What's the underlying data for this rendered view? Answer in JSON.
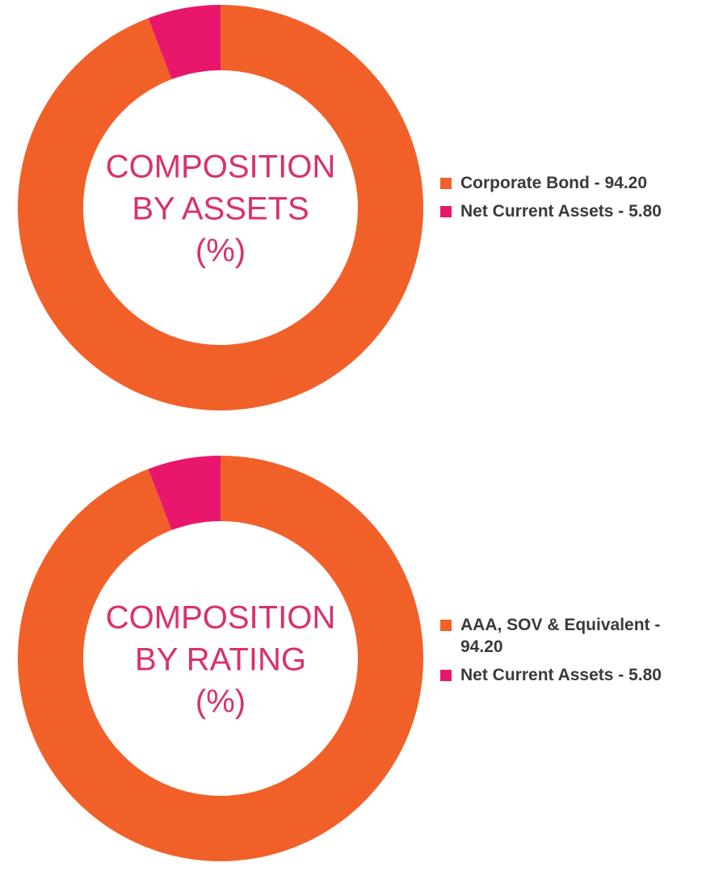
{
  "chart_data": [
    {
      "type": "donut",
      "title_lines": [
        "COMPOSITION",
        "BY ASSETS",
        "(%)"
      ],
      "categories": [
        "Corporate Bond - 94.20",
        "Net Current Assets - 5.80"
      ],
      "values": [
        94.2,
        5.8
      ],
      "colors": [
        "#f26029",
        "#e8176b"
      ]
    },
    {
      "type": "donut",
      "title_lines": [
        "COMPOSITION",
        "BY RATING",
        "(%)"
      ],
      "categories": [
        "AAA, SOV & Equivalent - 94.20",
        "Net Current Assets - 5.80"
      ],
      "values": [
        94.2,
        5.8
      ],
      "colors": [
        "#f26029",
        "#e8176b"
      ]
    }
  ]
}
